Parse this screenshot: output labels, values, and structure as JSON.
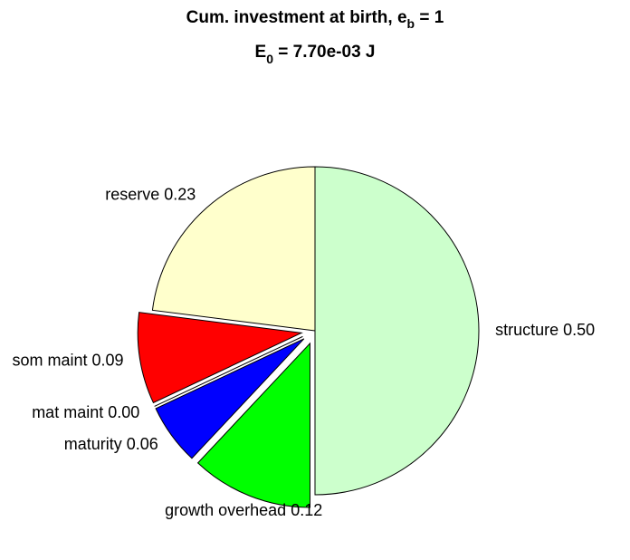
{
  "chart_data": {
    "type": "pie",
    "title": [
      "Cum. investment at birth, e",
      "b",
      " = 1"
    ],
    "subtitle": [
      "E",
      "0",
      " = 7.70e-03 J"
    ],
    "categories": [
      "structure",
      "growth overhead",
      "maturity",
      "mat maint",
      "som maint",
      "reserve"
    ],
    "values": [
      0.5,
      0.12,
      0.06,
      0,
      0.09,
      0.23
    ],
    "value_labels": [
      "0.50",
      "0.12",
      "0.06",
      "0.00",
      "0.09",
      "0.23"
    ],
    "colors": [
      "#ccffcc",
      "#00ff00",
      "#0000ff",
      "#ff00ff",
      "#ff0000",
      "#ffffcc"
    ],
    "explode": [
      false,
      true,
      true,
      true,
      true,
      false
    ]
  }
}
